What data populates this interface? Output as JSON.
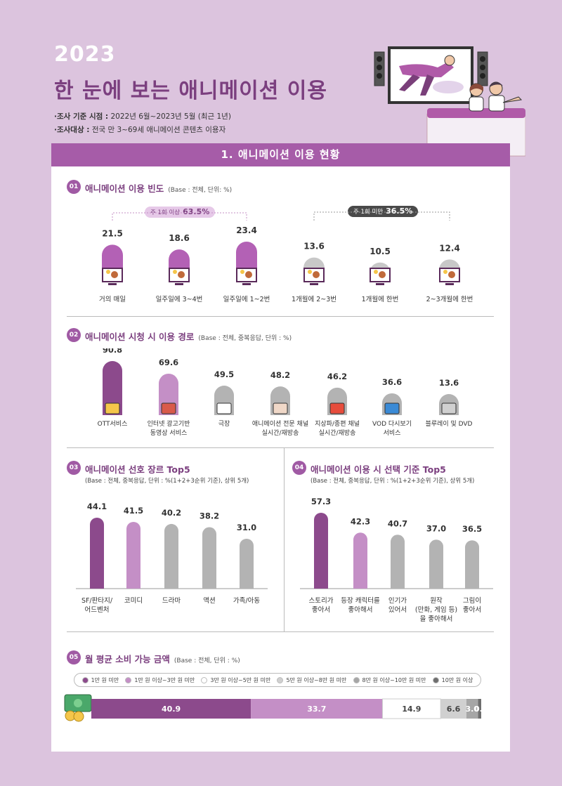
{
  "header": {
    "year": "2023",
    "title": "한 눈에 보는 애니메이션 이용",
    "survey_period_label": "·조사 기준 시점 :",
    "survey_period": "2022년 6월~2023년 5월 (최근 1년)",
    "survey_target_label": "·조사대상 :",
    "survey_target": "전국 만 3~69세 애니메이션 콘텐츠 이용자"
  },
  "section_header": "1. 애니메이션 이용 현황",
  "colors": {
    "dark_purple": "#8c4a8c",
    "light_purple": "#b97fba",
    "gray": "#b3b3b3",
    "header_purple": "#a65ca8"
  },
  "chart_data": [
    {
      "type": "bar",
      "id": "01",
      "title": "애니메이션 이용 빈도",
      "base": "(Base : 전체, 단위: %)",
      "categories": [
        "거의 매일",
        "일주일에 3~4번",
        "일주일에 1~2번",
        "1개월에 2~3번",
        "1개월에 한번",
        "2~3개월에 한번"
      ],
      "values": [
        21.5,
        18.6,
        23.4,
        13.6,
        10.5,
        12.4
      ],
      "bar_colors": [
        "#b361b5",
        "#b361b5",
        "#b361b5",
        "#c8c8c8",
        "#c8c8c8",
        "#c8c8c8"
      ],
      "groups": [
        {
          "label": "주 1회 이상",
          "value": "63.5%"
        },
        {
          "label": "주 1회 미만",
          "value": "36.5%"
        }
      ]
    },
    {
      "type": "bar",
      "id": "02",
      "title": "애니메이션 시청 시 이용 경로",
      "base": "(Base : 전체, 중복응답, 단위 : %)",
      "categories": [
        "OTT서비스",
        "인터넷 광고기반 동영상 서비스",
        "극장",
        "애니메이션 전문 채널 실시간/재방송",
        "지상파/종편 채널 실시간/재방송",
        "VOD 다시보기 서비스",
        "블루레이 및 DVD"
      ],
      "category_lines": [
        [
          "OTT서비스"
        ],
        [
          "인터넷 광고기반",
          "동영상 서비스"
        ],
        [
          "극장"
        ],
        [
          "애니메이션 전문 채널",
          "실시간/재방송"
        ],
        [
          "지상파/종편 채널",
          "실시간/재방송"
        ],
        [
          "VOD 다시보기",
          "서비스"
        ],
        [
          "블루레이 및 DVD"
        ]
      ],
      "values": [
        90.8,
        69.6,
        49.5,
        48.2,
        46.2,
        36.6,
        13.6
      ],
      "bar_colors": [
        "#8c4a8c",
        "#c48fc6",
        "#b3b3b3",
        "#b3b3b3",
        "#b3b3b3",
        "#b3b3b3",
        "#b3b3b3"
      ]
    },
    {
      "type": "bar",
      "id": "03",
      "title": "애니메이션 선호 장르 Top5",
      "base": "(Base : 전체, 중복응답, 단위 : %(1+2+3순위 기준), 상위 5개)",
      "categories": [
        "SF/판타지/어드벤처",
        "코미디",
        "드라마",
        "액션",
        "가족/아동"
      ],
      "category_lines": [
        [
          "SF/판타지/",
          "어드벤처"
        ],
        [
          "코미디"
        ],
        [
          "드라마"
        ],
        [
          "액션"
        ],
        [
          "가족/아동"
        ]
      ],
      "values": [
        44.1,
        41.5,
        40.2,
        38.2,
        31.0
      ],
      "value_labels": [
        "44.1",
        "41.5",
        "40.2",
        "38.2",
        "31.0"
      ],
      "bar_colors": [
        "#8c4a8c",
        "#c48fc6",
        "#b3b3b3",
        "#b3b3b3",
        "#b3b3b3"
      ]
    },
    {
      "type": "bar",
      "id": "04",
      "title": "애니메이션 이용 시 선택 기준 Top5",
      "base": "(Base : 전체, 중복응답, 단위 : %(1+2+3순위 기준), 상위 5개)",
      "categories": [
        "스토리가 좋아서",
        "등장 캐릭터를 좋아해서",
        "인기가 있어서",
        "원작(만화, 게임 등)을 좋아해서",
        "그림이 좋아서"
      ],
      "category_lines": [
        [
          "스토리가",
          "좋아서"
        ],
        [
          "등장 캐릭터를",
          "좋아해서"
        ],
        [
          "인기가",
          "있어서"
        ],
        [
          "원작",
          "(만화, 게임 등)",
          "을 좋아해서"
        ],
        [
          "그림이",
          "좋아서"
        ]
      ],
      "values": [
        57.3,
        42.3,
        40.7,
        37.0,
        36.5
      ],
      "bar_colors": [
        "#8c4a8c",
        "#c48fc6",
        "#b3b3b3",
        "#b3b3b3",
        "#b3b3b3"
      ]
    },
    {
      "type": "bar",
      "stacked": true,
      "id": "05",
      "title": "월 평균 소비 가능 금액",
      "base": "(Base : 전체, 단위 : %)",
      "categories": [
        "1만 원 미만",
        "1만 원 이상~3만 원 미만",
        "3만 원 이상~5만 원 미만",
        "5만 원 이상~8만 원 미만",
        "8만 원 이상~10만 원 미만",
        "10만 원 이상"
      ],
      "values": [
        40.9,
        33.7,
        14.9,
        6.6,
        3.0,
        0.8
      ],
      "bar_colors": [
        "#8c4a8c",
        "#c48fc6",
        "#ffffff",
        "#d0d0d0",
        "#a6a6a6",
        "#6e6e6e"
      ],
      "text_colors": [
        "#ffffff",
        "#ffffff",
        "#444444",
        "#444444",
        "#ffffff",
        "#ffffff"
      ]
    }
  ]
}
